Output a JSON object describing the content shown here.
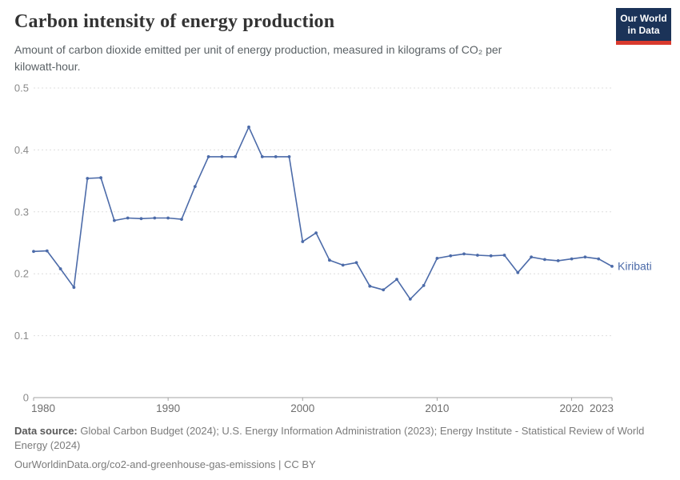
{
  "header": {
    "title": "Carbon intensity of energy production",
    "subtitle": "Amount of carbon dioxide emitted per unit of energy production, measured in kilograms of CO₂ per kilowatt-hour.",
    "logo": {
      "line1": "Our World",
      "line2": "in Data",
      "bg_color": "#1b3358",
      "accent_color": "#d93a2e"
    }
  },
  "chart_data": {
    "type": "line",
    "title": "Carbon intensity of energy production",
    "xlabel": "",
    "ylabel": "",
    "xlim": [
      1980,
      2023
    ],
    "ylim": [
      0,
      0.5
    ],
    "yticks": [
      0,
      0.1,
      0.2,
      0.3,
      0.4,
      0.5
    ],
    "ytick_labels": [
      "0",
      "0.1",
      "0.2",
      "0.3",
      "0.4",
      "0.5"
    ],
    "xticks": [
      1980,
      1990,
      2000,
      2010,
      2020,
      2023
    ],
    "grid": "horizontal-dashed",
    "legend_position": "end-of-line-label",
    "series": [
      {
        "name": "Kiribati",
        "color": "#4c6ba9",
        "x": [
          1980,
          1981,
          1982,
          1983,
          1984,
          1985,
          1986,
          1987,
          1988,
          1989,
          1990,
          1991,
          1992,
          1993,
          1994,
          1995,
          1996,
          1997,
          1998,
          1999,
          2000,
          2001,
          2002,
          2003,
          2004,
          2005,
          2006,
          2007,
          2008,
          2009,
          2010,
          2011,
          2012,
          2013,
          2014,
          2015,
          2016,
          2017,
          2018,
          2019,
          2020,
          2021,
          2022,
          2023
        ],
        "values": [
          0.236,
          0.237,
          0.208,
          0.178,
          0.354,
          0.355,
          0.286,
          0.29,
          0.289,
          0.29,
          0.29,
          0.288,
          0.341,
          0.389,
          0.389,
          0.389,
          0.437,
          0.389,
          0.389,
          0.389,
          0.252,
          0.266,
          0.222,
          0.214,
          0.218,
          0.18,
          0.174,
          0.191,
          0.159,
          0.181,
          0.225,
          0.229,
          0.232,
          0.23,
          0.229,
          0.23,
          0.202,
          0.227,
          0.223,
          0.221,
          0.224,
          0.227,
          0.224,
          0.212
        ]
      }
    ],
    "axis_color": "#a3a3a3",
    "gridline_color": "#dedede"
  },
  "footer": {
    "datasource_label": "Data source:",
    "datasource_text": " Global Carbon Budget (2024); U.S. Energy Information Administration (2023); Energy Institute - Statistical Review of World Energy (2024)",
    "url_line": "OurWorldinData.org/co2-and-greenhouse-gas-emissions | CC BY"
  }
}
